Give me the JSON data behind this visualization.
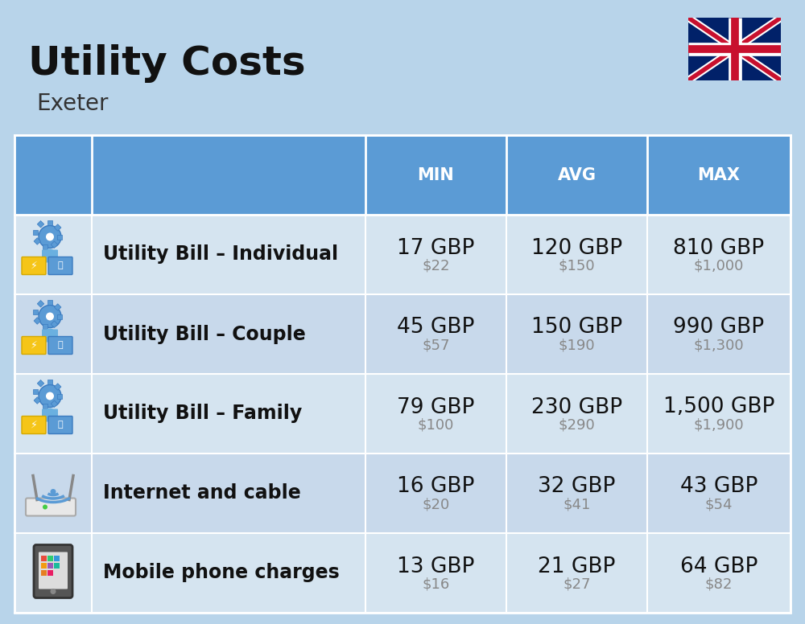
{
  "title": "Utility Costs",
  "subtitle": "Exeter",
  "background_color": "#b8d4ea",
  "header_color": "#5b9bd5",
  "header_text_color": "#ffffff",
  "row_color_even": "#c8d9eb",
  "row_color_odd": "#d5e4f0",
  "icon_col_color": "#b8d4ea",
  "label_col_color_even": "#c8d9eb",
  "label_col_color_odd": "#d5e4f0",
  "col_headers": [
    "MIN",
    "AVG",
    "MAX"
  ],
  "rows": [
    {
      "label": "Utility Bill – Individual",
      "icon": "utility",
      "min_gbp": "17 GBP",
      "min_usd": "$22",
      "avg_gbp": "120 GBP",
      "avg_usd": "$150",
      "max_gbp": "810 GBP",
      "max_usd": "$1,000"
    },
    {
      "label": "Utility Bill – Couple",
      "icon": "utility",
      "min_gbp": "45 GBP",
      "min_usd": "$57",
      "avg_gbp": "150 GBP",
      "avg_usd": "$190",
      "max_gbp": "990 GBP",
      "max_usd": "$1,300"
    },
    {
      "label": "Utility Bill – Family",
      "icon": "utility",
      "min_gbp": "79 GBP",
      "min_usd": "$100",
      "avg_gbp": "230 GBP",
      "avg_usd": "$290",
      "max_gbp": "1,500 GBP",
      "max_usd": "$1,900"
    },
    {
      "label": "Internet and cable",
      "icon": "internet",
      "min_gbp": "16 GBP",
      "min_usd": "$20",
      "avg_gbp": "32 GBP",
      "avg_usd": "$41",
      "max_gbp": "43 GBP",
      "max_usd": "$54"
    },
    {
      "label": "Mobile phone charges",
      "icon": "mobile",
      "min_gbp": "13 GBP",
      "min_usd": "$16",
      "avg_gbp": "21 GBP",
      "avg_usd": "$27",
      "max_gbp": "64 GBP",
      "max_usd": "$82"
    }
  ],
  "title_fontsize": 36,
  "subtitle_fontsize": 20,
  "header_fontsize": 15,
  "cell_gbp_fontsize": 19,
  "cell_usd_fontsize": 13,
  "label_fontsize": 17,
  "fig_width": 10.0,
  "fig_height": 7.76,
  "dpi": 100
}
